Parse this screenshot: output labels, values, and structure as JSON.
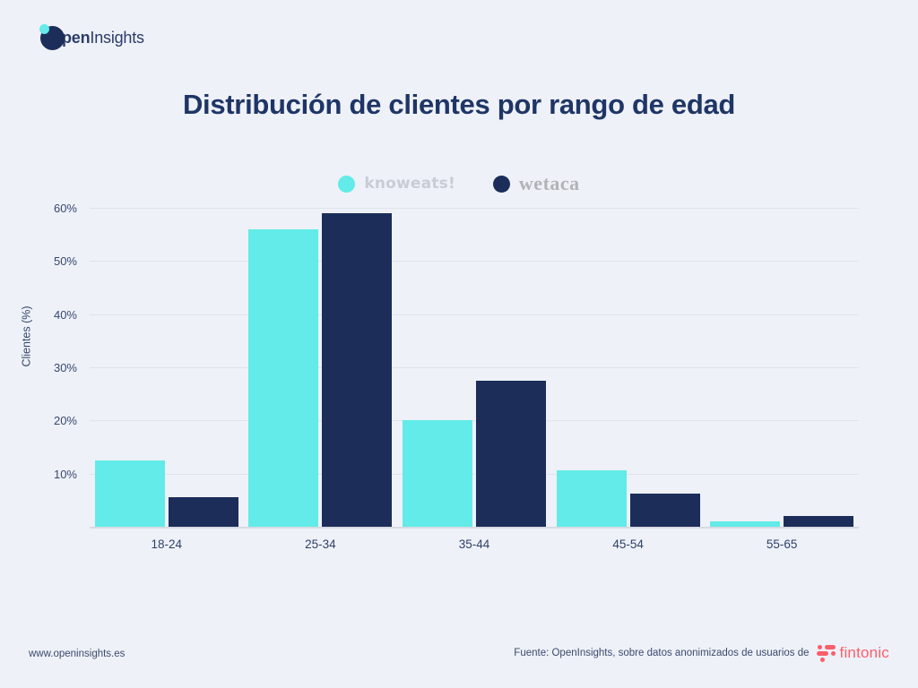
{
  "logo": {
    "bold": "pen",
    "light": "Insights",
    "circle_color": "#1c2d5a",
    "dot_color": "#62ebe8"
  },
  "title": "Distribución de clientes por rango de edad",
  "legend": [
    {
      "label": "knoweats!",
      "color": "#62ebe8"
    },
    {
      "label": "wetaca",
      "color": "#1c2d5a"
    }
  ],
  "chart_data": {
    "type": "bar",
    "title": "Distribución de clientes por rango de edad",
    "categories": [
      "18-24",
      "25-34",
      "35-44",
      "45-54",
      "55-65"
    ],
    "series": [
      {
        "name": "knoweats!",
        "color": "#62ebe8",
        "values": [
          12.5,
          56,
          20,
          10.7,
          1
        ]
      },
      {
        "name": "wetaca",
        "color": "#1c2d5a",
        "values": [
          5.5,
          59,
          27.5,
          6.2,
          2
        ]
      }
    ],
    "xlabel": "",
    "ylabel": "Clientes (%)",
    "ylim": [
      0,
      60
    ],
    "yticks": [
      {
        "value": 10,
        "label": "10%"
      },
      {
        "value": 20,
        "label": "20%"
      },
      {
        "value": 30,
        "label": "30%"
      },
      {
        "value": 40,
        "label": "40%"
      },
      {
        "value": 50,
        "label": "50%"
      },
      {
        "value": 60,
        "label": "60%"
      }
    ],
    "grid": true,
    "legend_position": "top-center"
  },
  "footer": {
    "left": "www.openinsights.es",
    "source": "Fuente: OpenInsights, sobre datos anonimizados de usuarios de",
    "brand": "fintonic",
    "brand_color": "#fb5e6c"
  }
}
